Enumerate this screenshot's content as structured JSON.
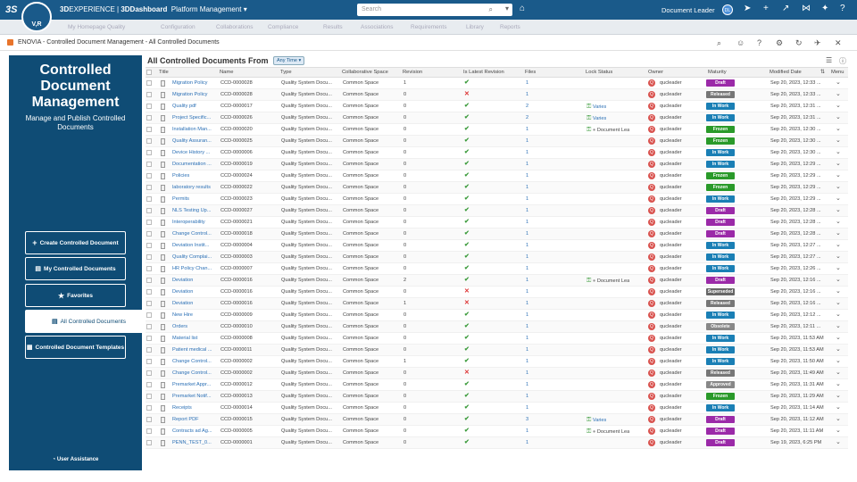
{
  "topbar": {
    "logo_text": "V,R",
    "brand_bold": "3D",
    "brand_rest": "EXPERIENCE | ",
    "brand_dash": "3DDashboard",
    "platform": "Platform Management",
    "search_placeholder": "Search",
    "user": "Document Leader",
    "user_initials": "DL"
  },
  "subbar": {
    "items": [
      "My Homepage",
      "Quality",
      "Configuration",
      "Collaborations",
      "Compliance",
      "Results",
      "Associations",
      "Requirements",
      "Library",
      "Reports"
    ]
  },
  "app": {
    "title": "ENOVIA - Controlled Document Management - All Controlled Documents"
  },
  "left": {
    "title": "Controlled Document Management",
    "subtitle": "Manage and Publish Controlled Documents",
    "buttons": [
      {
        "label": "Create Controlled Document",
        "icon": "plus-icon"
      },
      {
        "label": "My Controlled Documents",
        "icon": "my-docs-icon"
      },
      {
        "label": "Favorites",
        "icon": "star-icon"
      },
      {
        "label": "All Controlled Documents",
        "icon": "all-docs-icon"
      },
      {
        "label": "Controlled Document Templates",
        "icon": "grid-icon"
      }
    ],
    "user_assistance": "User Assistance"
  },
  "main": {
    "title": "All Controlled Documents From",
    "filter": "Any Time",
    "columns": [
      "Title",
      "Name",
      "Type",
      "Collaborative Space",
      "Revision",
      "Is Latest Revision",
      "Files",
      "Lock Status",
      "Owner",
      "Maturity",
      "Modified Date",
      "Menu"
    ]
  },
  "rows": [
    {
      "title": "Migration Policy",
      "name": "CCD-0000028",
      "type": "Quality System Docu...",
      "space": "Common Space",
      "rev": "1",
      "latest": true,
      "files": "1",
      "lock": "",
      "owner": "qucleader",
      "maturity": "Draft",
      "date": "Sep 20, 2023, 12:33 ..."
    },
    {
      "title": "Migration Policy",
      "name": "CCD-0000028",
      "type": "Quality System Docu...",
      "space": "Common Space",
      "rev": "0",
      "latest": false,
      "files": "1",
      "lock": "",
      "owner": "qucleader",
      "maturity": "Released",
      "date": "Sep 20, 2023, 12:33 ..."
    },
    {
      "title": "Quality pdf",
      "name": "CCD-0000017",
      "type": "Quality System Docu...",
      "space": "Common Space",
      "rev": "0",
      "latest": true,
      "files": "2",
      "lock": "Varies",
      "owner": "qucleader",
      "maturity": "In Work",
      "date": "Sep 20, 2023, 12:31 ..."
    },
    {
      "title": "Project Specific...",
      "name": "CCD-0000026",
      "type": "Quality System Docu...",
      "space": "Common Space",
      "rev": "0",
      "latest": true,
      "files": "2",
      "lock": "Varies",
      "owner": "qucleader",
      "maturity": "In Work",
      "date": "Sep 20, 2023, 12:31 ..."
    },
    {
      "title": "Installation Man...",
      "name": "CCD-0000020",
      "type": "Quality System Docu...",
      "space": "Common Space",
      "rev": "0",
      "latest": true,
      "files": "1",
      "lock": "Document Lea",
      "owner": "qucleader",
      "maturity": "Frozen",
      "date": "Sep 20, 2023, 12:30 ..."
    },
    {
      "title": "Quality Assuran...",
      "name": "CCD-0000025",
      "type": "Quality System Docu...",
      "space": "Common Space",
      "rev": "0",
      "latest": true,
      "files": "1",
      "lock": "",
      "owner": "qucleader",
      "maturity": "Frozen",
      "date": "Sep 20, 2023, 12:30 ..."
    },
    {
      "title": "Device History ...",
      "name": "CCD-0000006",
      "type": "Quality System Docu...",
      "space": "Common Space",
      "rev": "0",
      "latest": true,
      "files": "1",
      "lock": "",
      "owner": "qucleader",
      "maturity": "In Work",
      "date": "Sep 20, 2023, 12:30 ..."
    },
    {
      "title": "Documentation ...",
      "name": "CCD-0000019",
      "type": "Quality System Docu...",
      "space": "Common Space",
      "rev": "0",
      "latest": true,
      "files": "1",
      "lock": "",
      "owner": "qucleader",
      "maturity": "In Work",
      "date": "Sep 20, 2023, 12:29 ..."
    },
    {
      "title": "Policies",
      "name": "CCD-0000024",
      "type": "Quality System Docu...",
      "space": "Common Space",
      "rev": "0",
      "latest": true,
      "files": "1",
      "lock": "",
      "owner": "qucleader",
      "maturity": "Frozen",
      "date": "Sep 20, 2023, 12:29 ..."
    },
    {
      "title": "laboratory results",
      "name": "CCD-0000022",
      "type": "Quality System Docu...",
      "space": "Common Space",
      "rev": "0",
      "latest": true,
      "files": "1",
      "lock": "",
      "owner": "qucleader",
      "maturity": "Frozen",
      "date": "Sep 20, 2023, 12:29 ..."
    },
    {
      "title": "Permits",
      "name": "CCD-0000023",
      "type": "Quality System Docu...",
      "space": "Common Space",
      "rev": "0",
      "latest": true,
      "files": "1",
      "lock": "",
      "owner": "qucleader",
      "maturity": "In Work",
      "date": "Sep 20, 2023, 12:29 ..."
    },
    {
      "title": "NLS Testing Up...",
      "name": "CCD-0000027",
      "type": "Quality System Docu...",
      "space": "Common Space",
      "rev": "0",
      "latest": true,
      "files": "1",
      "lock": "",
      "owner": "qucleader",
      "maturity": "Draft",
      "date": "Sep 20, 2023, 12:28 ..."
    },
    {
      "title": "Interoperability",
      "name": "CCD-0000021",
      "type": "Quality System Docu...",
      "space": "Common Space",
      "rev": "0",
      "latest": true,
      "files": "1",
      "lock": "",
      "owner": "qucleader",
      "maturity": "Draft",
      "date": "Sep 20, 2023, 12:28 ..."
    },
    {
      "title": "Change Control...",
      "name": "CCD-0000018",
      "type": "Quality System Docu...",
      "space": "Common Space",
      "rev": "0",
      "latest": true,
      "files": "1",
      "lock": "",
      "owner": "qucleader",
      "maturity": "Draft",
      "date": "Sep 20, 2023, 12:28 ..."
    },
    {
      "title": "Deviation Instit...",
      "name": "CCD-0000004",
      "type": "Quality System Docu...",
      "space": "Common Space",
      "rev": "0",
      "latest": true,
      "files": "1",
      "lock": "",
      "owner": "qucleader",
      "maturity": "In Work",
      "date": "Sep 20, 2023, 12:27 ..."
    },
    {
      "title": "Quality Complai...",
      "name": "CCD-0000003",
      "type": "Quality System Docu...",
      "space": "Common Space",
      "rev": "0",
      "latest": true,
      "files": "1",
      "lock": "",
      "owner": "qucleader",
      "maturity": "In Work",
      "date": "Sep 20, 2023, 12:27 ..."
    },
    {
      "title": "HR Policy Chan...",
      "name": "CCD-0000007",
      "type": "Quality System Docu...",
      "space": "Common Space",
      "rev": "0",
      "latest": true,
      "files": "1",
      "lock": "",
      "owner": "qucleader",
      "maturity": "In Work",
      "date": "Sep 20, 2023, 12:26 ..."
    },
    {
      "title": "Deviation",
      "name": "CCD-0000016",
      "type": "Quality System Docu...",
      "space": "Common Space",
      "rev": "2",
      "latest": true,
      "files": "1",
      "lock": "Document Lea",
      "owner": "qucleader",
      "maturity": "Draft",
      "date": "Sep 20, 2023, 12:16 ..."
    },
    {
      "title": "Deviation",
      "name": "CCD-0000016",
      "type": "Quality System Docu...",
      "space": "Common Space",
      "rev": "0",
      "latest": false,
      "files": "1",
      "lock": "",
      "owner": "qucleader",
      "maturity": "Superseded",
      "date": "Sep 20, 2023, 12:16 ..."
    },
    {
      "title": "Deviation",
      "name": "CCD-0000016",
      "type": "Quality System Docu...",
      "space": "Common Space",
      "rev": "1",
      "latest": false,
      "files": "1",
      "lock": "",
      "owner": "qucleader",
      "maturity": "Released",
      "date": "Sep 20, 2023, 12:16 ..."
    },
    {
      "title": "New Hire",
      "name": "CCD-0000009",
      "type": "Quality System Docu...",
      "space": "Common Space",
      "rev": "0",
      "latest": true,
      "files": "1",
      "lock": "",
      "owner": "qucleader",
      "maturity": "In Work",
      "date": "Sep 20, 2023, 12:12 ..."
    },
    {
      "title": "Orders",
      "name": "CCD-0000010",
      "type": "Quality System Docu...",
      "space": "Common Space",
      "rev": "0",
      "latest": true,
      "files": "1",
      "lock": "",
      "owner": "qucleader",
      "maturity": "Obsolete",
      "date": "Sep 20, 2023, 12:11 ..."
    },
    {
      "title": "Material list",
      "name": "CCD-0000008",
      "type": "Quality System Docu...",
      "space": "Common Space",
      "rev": "0",
      "latest": true,
      "files": "1",
      "lock": "",
      "owner": "qucleader",
      "maturity": "In Work",
      "date": "Sep 20, 2023, 11:53 AM"
    },
    {
      "title": "Patient medical ...",
      "name": "CCD-0000011",
      "type": "Quality System Docu...",
      "space": "Common Space",
      "rev": "0",
      "latest": true,
      "files": "1",
      "lock": "",
      "owner": "qucleader",
      "maturity": "In Work",
      "date": "Sep 20, 2023, 11:53 AM"
    },
    {
      "title": "Change Control...",
      "name": "CCD-0000002",
      "type": "Quality System Docu...",
      "space": "Common Space",
      "rev": "1",
      "latest": true,
      "files": "1",
      "lock": "",
      "owner": "qucleader",
      "maturity": "In Work",
      "date": "Sep 20, 2023, 11:50 AM"
    },
    {
      "title": "Change Control...",
      "name": "CCD-0000002",
      "type": "Quality System Docu...",
      "space": "Common Space",
      "rev": "0",
      "latest": false,
      "files": "1",
      "lock": "",
      "owner": "qucleader",
      "maturity": "Released",
      "date": "Sep 20, 2023, 11:49 AM"
    },
    {
      "title": "Premarket Appr...",
      "name": "CCD-0000012",
      "type": "Quality System Docu...",
      "space": "Common Space",
      "rev": "0",
      "latest": true,
      "files": "1",
      "lock": "",
      "owner": "qucleader",
      "maturity": "Approved",
      "date": "Sep 20, 2023, 11:31 AM"
    },
    {
      "title": "Premarket Notif...",
      "name": "CCD-0000013",
      "type": "Quality System Docu...",
      "space": "Common Space",
      "rev": "0",
      "latest": true,
      "files": "1",
      "lock": "",
      "owner": "qucleader",
      "maturity": "Frozen",
      "date": "Sep 20, 2023, 11:29 AM"
    },
    {
      "title": "Receipts",
      "name": "CCD-0000014",
      "type": "Quality System Docu...",
      "space": "Common Space",
      "rev": "0",
      "latest": true,
      "files": "1",
      "lock": "",
      "owner": "qucleader",
      "maturity": "In Work",
      "date": "Sep 20, 2023, 11:14 AM"
    },
    {
      "title": "Report PDF",
      "name": "CCD-0000015",
      "type": "Quality System Docu...",
      "space": "Common Space",
      "rev": "0",
      "latest": true,
      "files": "3",
      "lock": "Varies",
      "owner": "qucleader",
      "maturity": "Draft",
      "date": "Sep 20, 2023, 11:12 AM"
    },
    {
      "title": "Contracts ad Ag...",
      "name": "CCD-0000005",
      "type": "Quality System Docu...",
      "space": "Common Space",
      "rev": "0",
      "latest": true,
      "files": "1",
      "lock": "Document Lea",
      "owner": "qucleader",
      "maturity": "Draft",
      "date": "Sep 20, 2023, 11:11 AM"
    },
    {
      "title": "PENN_TEST_0...",
      "name": "CCD-0000001",
      "type": "Quality System Docu...",
      "space": "Common Space",
      "rev": "0",
      "latest": true,
      "files": "1",
      "lock": "",
      "owner": "qucleader",
      "maturity": "Draft",
      "date": "Sep 19, 2023, 6:25 PM"
    }
  ],
  "maturity_colors": {
    "Draft": "#9b2aa8",
    "Released": "#777777",
    "In Work": "#1a7fb5",
    "Frozen": "#2a9a2a",
    "Superseded": "#666666",
    "Obsolete": "#888888",
    "Approved": "#888888"
  }
}
